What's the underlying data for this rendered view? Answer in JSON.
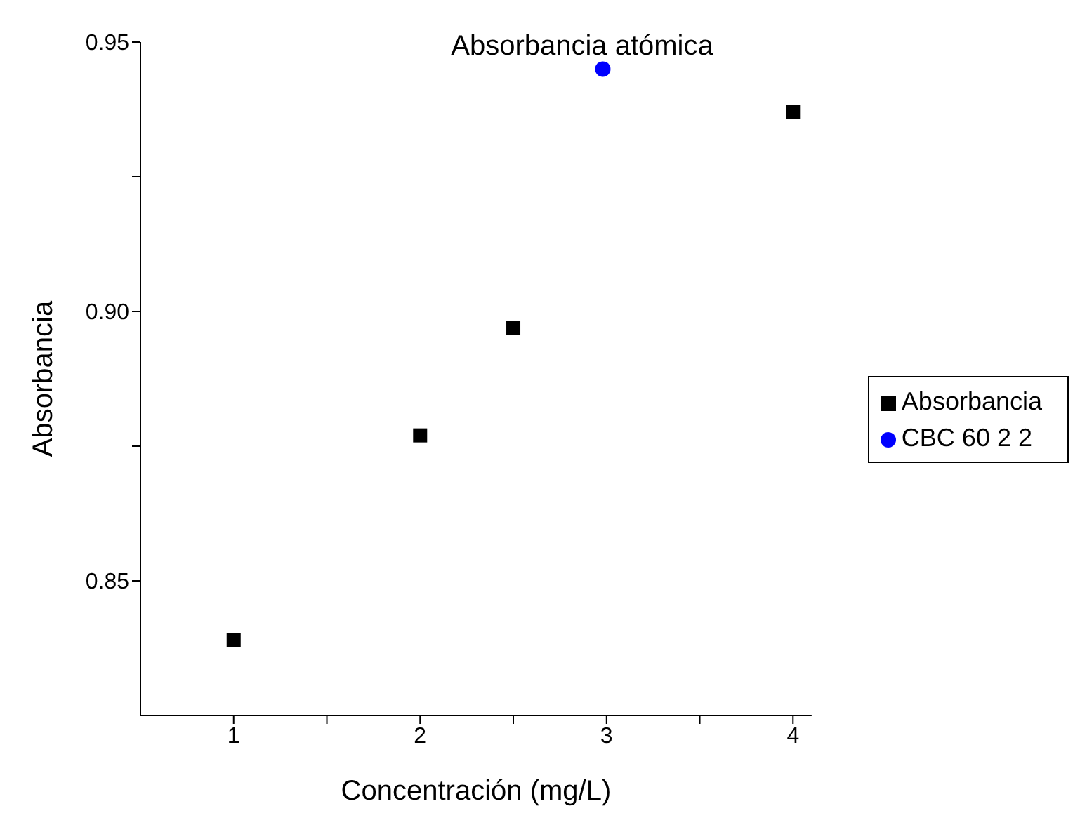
{
  "chart_data": {
    "type": "scatter",
    "title": "Absorbancia atómica",
    "xlabel": "Concentración (mg/L)",
    "ylabel": "Absorbancia",
    "xlim": [
      0.5,
      4.1
    ],
    "xticks": [
      1,
      {
        "value": 1.5,
        "label": null
      },
      2,
      {
        "value": 2.5,
        "label": null
      },
      3,
      {
        "value": 3.5,
        "label": null
      },
      4
    ],
    "ylim": [
      0.825,
      0.95
    ],
    "yticks": [
      0.85,
      {
        "value": 0.875,
        "label": null
      },
      {
        "value": 0.9,
        "label": "0.90"
      },
      {
        "value": 0.925,
        "label": null
      },
      0.95
    ],
    "grid": false,
    "legend": "right",
    "series": [
      {
        "name": "Absorbancia",
        "color": "#000000",
        "marker": "square",
        "x": [
          1,
          2,
          2.5,
          4
        ],
        "values": [
          0.839,
          0.877,
          0.897,
          0.937
        ]
      },
      {
        "name": "CBC 60 2 2",
        "color": "#0000ff",
        "marker": "circle",
        "x": [
          2.98
        ],
        "values": [
          0.945
        ]
      }
    ]
  }
}
